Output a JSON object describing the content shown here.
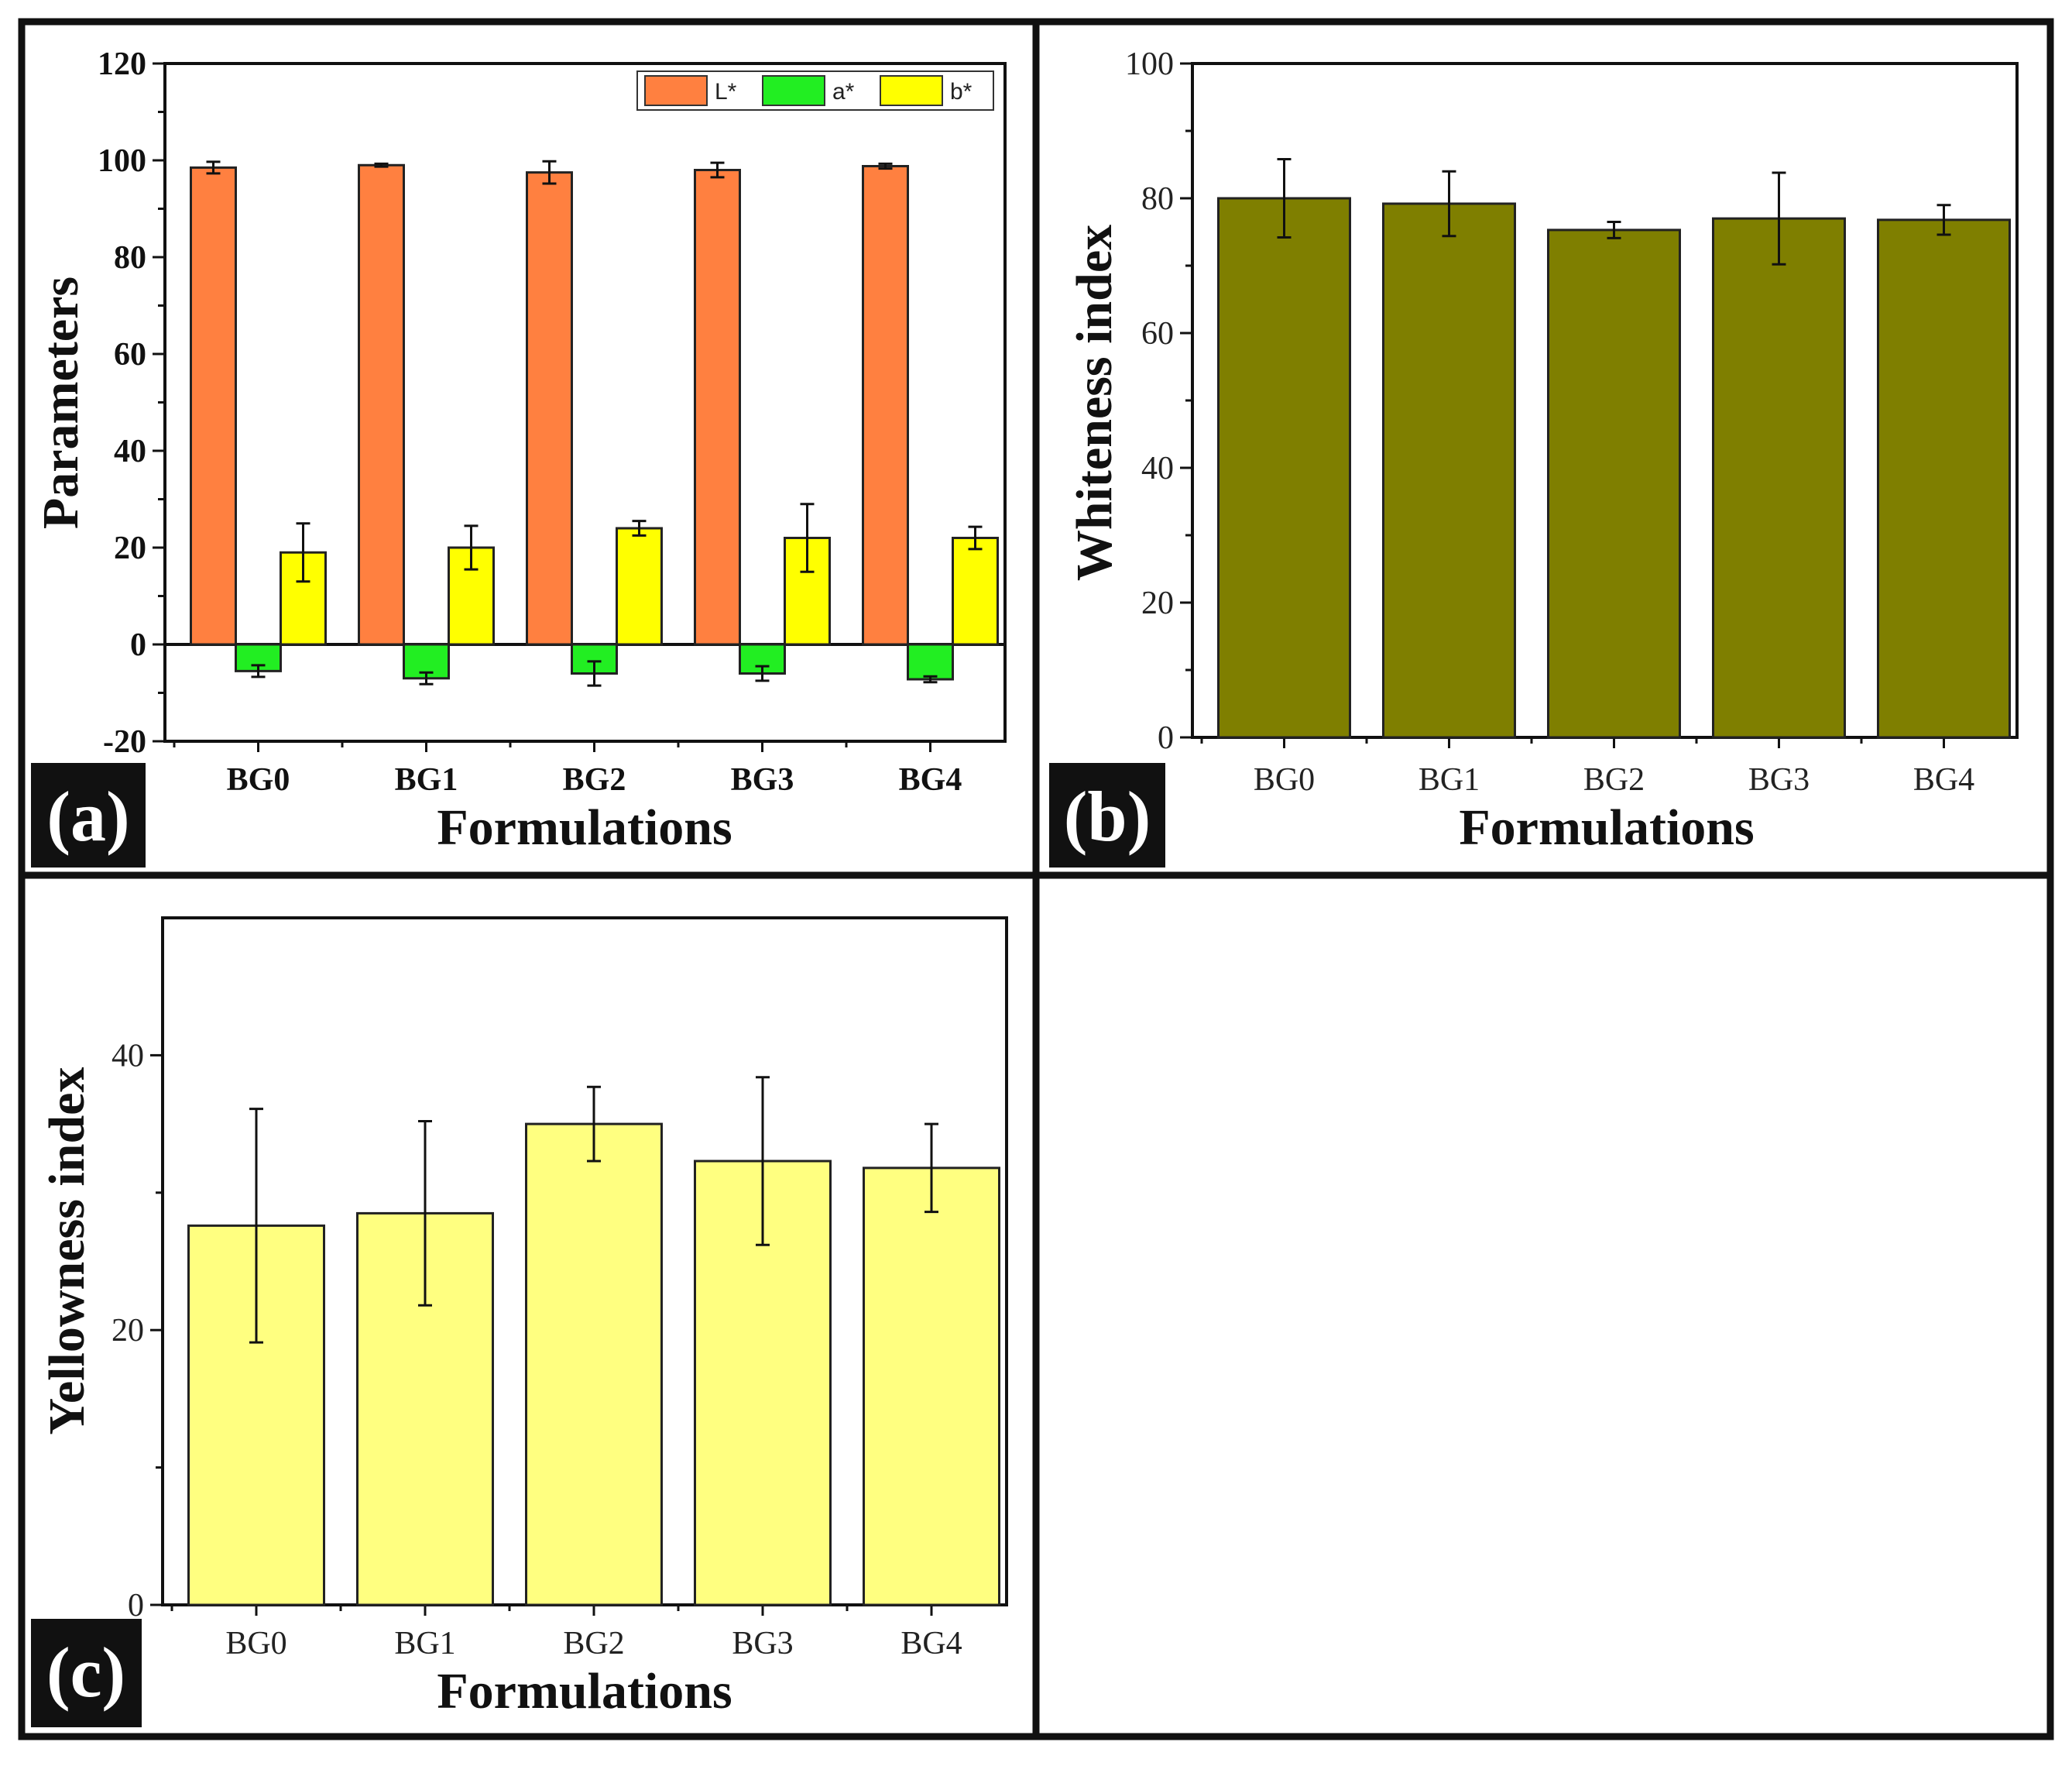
{
  "colors": {
    "L": "#ff8040",
    "a": "#22ee22",
    "b": "#ffff00",
    "whiteness": "#7f7f00",
    "yellowness": "#ffff80"
  },
  "panels": {
    "a": {
      "letter": "(a)"
    },
    "b": {
      "letter": "(b)"
    },
    "c": {
      "letter": "(c)"
    }
  },
  "chart_data": [
    {
      "id": "a",
      "type": "bar",
      "categories": [
        "BG0",
        "BG1",
        "BG2",
        "BG3",
        "BG4"
      ],
      "series": [
        {
          "name": "L*",
          "values": [
            98.5,
            99.0,
            97.5,
            98.0,
            98.8
          ],
          "errors": [
            1.2,
            0.3,
            2.3,
            1.5,
            0.5
          ]
        },
        {
          "name": "a*",
          "values": [
            -5.5,
            -7.0,
            -6.0,
            -6.0,
            -7.2
          ],
          "errors": [
            1.2,
            1.2,
            2.5,
            1.5,
            0.6
          ]
        },
        {
          "name": "b*",
          "values": [
            19.0,
            20.0,
            24.0,
            22.0,
            22.0
          ],
          "errors": [
            6.0,
            4.5,
            1.5,
            7.0,
            2.3
          ]
        }
      ],
      "xlabel": "Formulations",
      "ylabel": "Parameters",
      "ylim": [
        -20,
        120
      ],
      "yticks": [
        -20,
        0,
        20,
        40,
        60,
        80,
        100,
        120
      ],
      "legend": "top-right"
    },
    {
      "id": "b",
      "type": "bar",
      "categories": [
        "BG0",
        "BG1",
        "BG2",
        "BG3",
        "BG4"
      ],
      "series": [
        {
          "name": "Whiteness index",
          "values": [
            80.0,
            79.2,
            75.3,
            77.0,
            76.8
          ],
          "errors": [
            5.8,
            4.8,
            1.2,
            6.8,
            2.2
          ]
        }
      ],
      "xlabel": "Formulations",
      "ylabel": "Whiteness index",
      "ylim": [
        0,
        100
      ],
      "yticks": [
        0,
        20,
        40,
        60,
        80,
        100
      ]
    },
    {
      "id": "c",
      "type": "bar",
      "categories": [
        "BG0",
        "BG1",
        "BG2",
        "BG3",
        "BG4"
      ],
      "series": [
        {
          "name": "Yellowness index",
          "values": [
            27.6,
            28.5,
            35.0,
            32.3,
            31.8
          ],
          "errors": [
            8.5,
            6.7,
            2.7,
            6.1,
            3.2
          ]
        }
      ],
      "xlabel": "Formulations",
      "ylabel": "Yellowness index",
      "ylim": [
        0,
        50
      ],
      "yticks": [
        0,
        20,
        40
      ]
    }
  ]
}
